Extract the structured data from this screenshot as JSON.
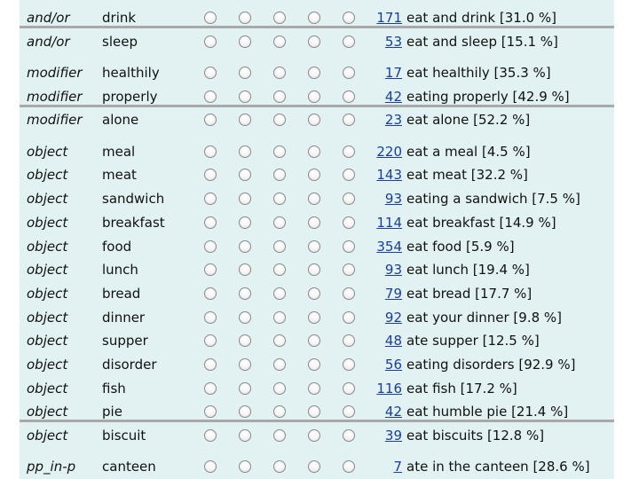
{
  "groups": [
    {
      "rows": [
        {
          "relation": "and/or",
          "word": "drink",
          "count": 171,
          "example": "eat and drink [31.0 %]"
        },
        {
          "relation": "and/or",
          "word": "sleep",
          "count": 53,
          "example": "eat and sleep [15.1 %]"
        }
      ]
    },
    {
      "rows": [
        {
          "relation": "modifier",
          "word": "healthily",
          "count": 17,
          "example": "eat healthily [35.3 %]"
        },
        {
          "relation": "modifier",
          "word": "properly",
          "count": 42,
          "example": "eating properly [42.9 %]"
        },
        {
          "relation": "modifier",
          "word": "alone",
          "count": 23,
          "example": "eat alone [52.2 %]"
        }
      ]
    },
    {
      "rows": [
        {
          "relation": "object",
          "word": "meal",
          "count": 220,
          "example": "eat a meal [4.5 %]"
        },
        {
          "relation": "object",
          "word": "meat",
          "count": 143,
          "example": "eat meat [32.2 %]"
        },
        {
          "relation": "object",
          "word": "sandwich",
          "count": 93,
          "example": "eating a sandwich [7.5 %]"
        },
        {
          "relation": "object",
          "word": "breakfast",
          "count": 114,
          "example": "eat breakfast [14.9 %]"
        },
        {
          "relation": "object",
          "word": "food",
          "count": 354,
          "example": "eat food [5.9 %]"
        },
        {
          "relation": "object",
          "word": "lunch",
          "count": 93,
          "example": "eat lunch [19.4 %]"
        },
        {
          "relation": "object",
          "word": "bread",
          "count": 79,
          "example": "eat bread [17.7 %]"
        },
        {
          "relation": "object",
          "word": "dinner",
          "count": 92,
          "example": "eat your dinner [9.8 %]"
        },
        {
          "relation": "object",
          "word": "supper",
          "count": 48,
          "example": "ate supper [12.5 %]"
        },
        {
          "relation": "object",
          "word": "disorder",
          "count": 56,
          "example": "eating disorders [92.9 %]"
        },
        {
          "relation": "object",
          "word": "fish",
          "count": 116,
          "example": "eat fish [17.2 %]"
        },
        {
          "relation": "object",
          "word": "pie",
          "count": 42,
          "example": "eat humble pie [21.4 %]"
        },
        {
          "relation": "object",
          "word": "biscuit",
          "count": 39,
          "example": "eat biscuits [12.8 %]"
        }
      ]
    },
    {
      "rows": [
        {
          "relation": "pp_in-p",
          "word": "canteen",
          "count": 7,
          "example": "ate in the canteen [28.6 %]"
        }
      ]
    }
  ]
}
